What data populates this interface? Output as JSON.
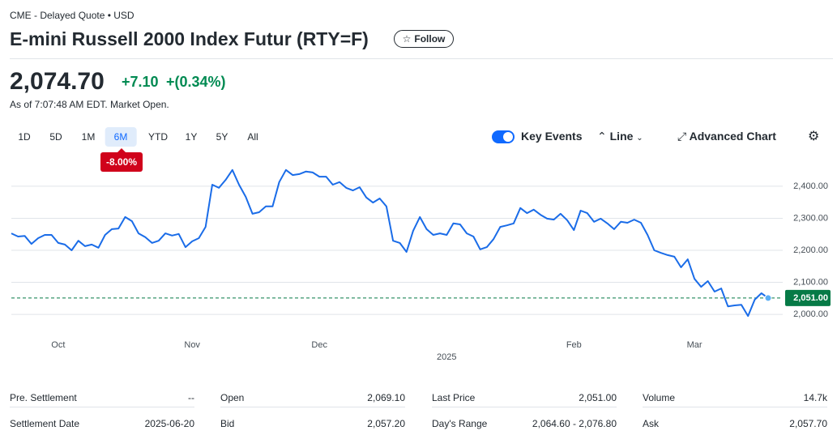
{
  "header": {
    "exchange": "CME - Delayed Quote • USD",
    "title": "E-mini Russell 2000 Index Futur (RTY=F)",
    "follow": "Follow"
  },
  "quote": {
    "price": "2,074.70",
    "change": "+7.10",
    "change_percent": "+(0.34%)",
    "as_of": "As of 7:07:48 AM EDT. Market Open."
  },
  "ranges": [
    "1D",
    "5D",
    "1M",
    "6M",
    "YTD",
    "1Y",
    "5Y",
    "All"
  ],
  "active_range": 3,
  "period_change": "-8.00%",
  "toolbar": {
    "key_events": "Key Events",
    "chart_type": "Line",
    "advanced": "Advanced Chart"
  },
  "chart_data": {
    "type": "line",
    "color": "#1a6ce8",
    "values": [
      2253,
      2243,
      2245,
      2220,
      2238,
      2248,
      2248,
      2223,
      2218,
      2200,
      2230,
      2213,
      2218,
      2208,
      2248,
      2266,
      2268,
      2304,
      2291,
      2253,
      2241,
      2223,
      2230,
      2253,
      2246,
      2251,
      2210,
      2228,
      2238,
      2273,
      2405,
      2395,
      2420,
      2451,
      2405,
      2367,
      2314,
      2319,
      2337,
      2337,
      2413,
      2451,
      2435,
      2438,
      2446,
      2443,
      2430,
      2430,
      2405,
      2413,
      2395,
      2387,
      2397,
      2365,
      2349,
      2362,
      2337,
      2230,
      2223,
      2195,
      2261,
      2304,
      2266,
      2248,
      2253,
      2248,
      2284,
      2281,
      2253,
      2243,
      2203,
      2210,
      2235,
      2273,
      2278,
      2284,
      2332,
      2316,
      2327,
      2311,
      2299,
      2296,
      2314,
      2294,
      2263,
      2324,
      2316,
      2289,
      2299,
      2284,
      2266,
      2289,
      2286,
      2296,
      2286,
      2248,
      2200,
      2192,
      2185,
      2180,
      2147,
      2172,
      2111,
      2086,
      2104,
      2071,
      2081,
      2025,
      2028,
      2030,
      1995,
      2046,
      2066,
      2051
    ],
    "xlim": [
      0,
      113
    ],
    "xticks": [
      {
        "value": 7,
        "label": "Oct"
      },
      {
        "value": 27,
        "label": "Nov"
      },
      {
        "value": 46,
        "label": "Dec"
      },
      {
        "value": 84,
        "label": "Feb"
      },
      {
        "value": 102,
        "label": "Mar"
      }
    ],
    "year_ticks": [
      {
        "value": 65,
        "label": "2025"
      }
    ],
    "ylim": [
      1937,
      2501
    ],
    "yticks": [
      {
        "value": 2000,
        "label": "2,000.00"
      },
      {
        "value": 2100,
        "label": "2,100.00"
      },
      {
        "value": 2200,
        "label": "2,200.00"
      },
      {
        "value": 2300,
        "label": "2,300.00"
      },
      {
        "value": 2400,
        "label": "2,400.00"
      }
    ],
    "grid": true,
    "reference_line": 2051,
    "reference_label": "2,051.00",
    "reference_color": "#067a46"
  },
  "stats": [
    [
      [
        "Pre. Settlement",
        "--"
      ],
      [
        "Open",
        "2,069.10"
      ],
      [
        "Last Price",
        "2,051.00"
      ],
      [
        "Volume",
        "14.7k"
      ]
    ],
    [
      [
        "Settlement Date",
        "2025-06-20"
      ],
      [
        "Bid",
        "2,057.20"
      ],
      [
        "Day's Range",
        "2,064.60 - 2,076.80"
      ],
      [
        "Ask",
        "2,057.70"
      ]
    ]
  ]
}
